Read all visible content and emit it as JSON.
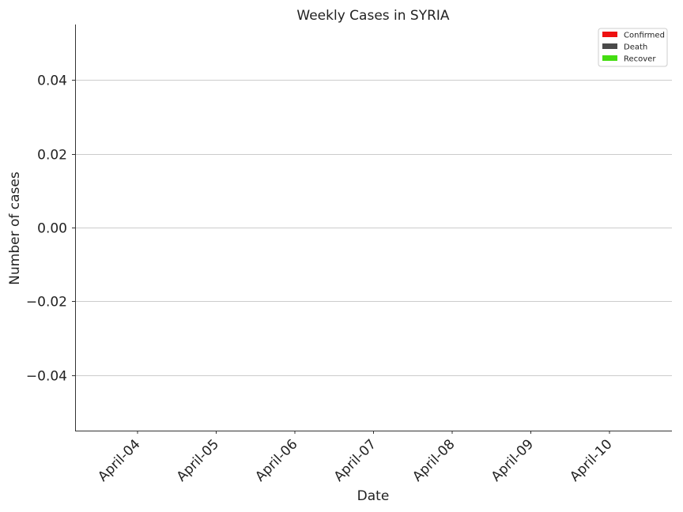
{
  "chart_data": {
    "type": "bar",
    "title": "Weekly Cases in SYRIA",
    "xlabel": "Date",
    "ylabel": "Number of cases",
    "categories": [
      "April-04",
      "April-05",
      "April-06",
      "April-07",
      "April-08",
      "April-09",
      "April-10"
    ],
    "series": [
      {
        "name": "Confirmed",
        "color": "#ee1111",
        "values": [
          0,
          0,
          0,
          0,
          0,
          0,
          0
        ]
      },
      {
        "name": "Death",
        "color": "#4a4a4a",
        "values": [
          0,
          0,
          0,
          0,
          0,
          0,
          0
        ]
      },
      {
        "name": "Recover",
        "color": "#44dd11",
        "values": [
          0,
          0,
          0,
          0,
          0,
          0,
          0
        ]
      }
    ],
    "ylim": [
      -0.055,
      0.055
    ],
    "yticks": [
      -0.04,
      -0.02,
      0.0,
      0.02,
      0.04
    ],
    "ytick_labels": [
      "−0.04",
      "−0.02",
      "0.00",
      "0.02",
      "0.04"
    ],
    "grid": "y",
    "legend_position": "top-right"
  }
}
